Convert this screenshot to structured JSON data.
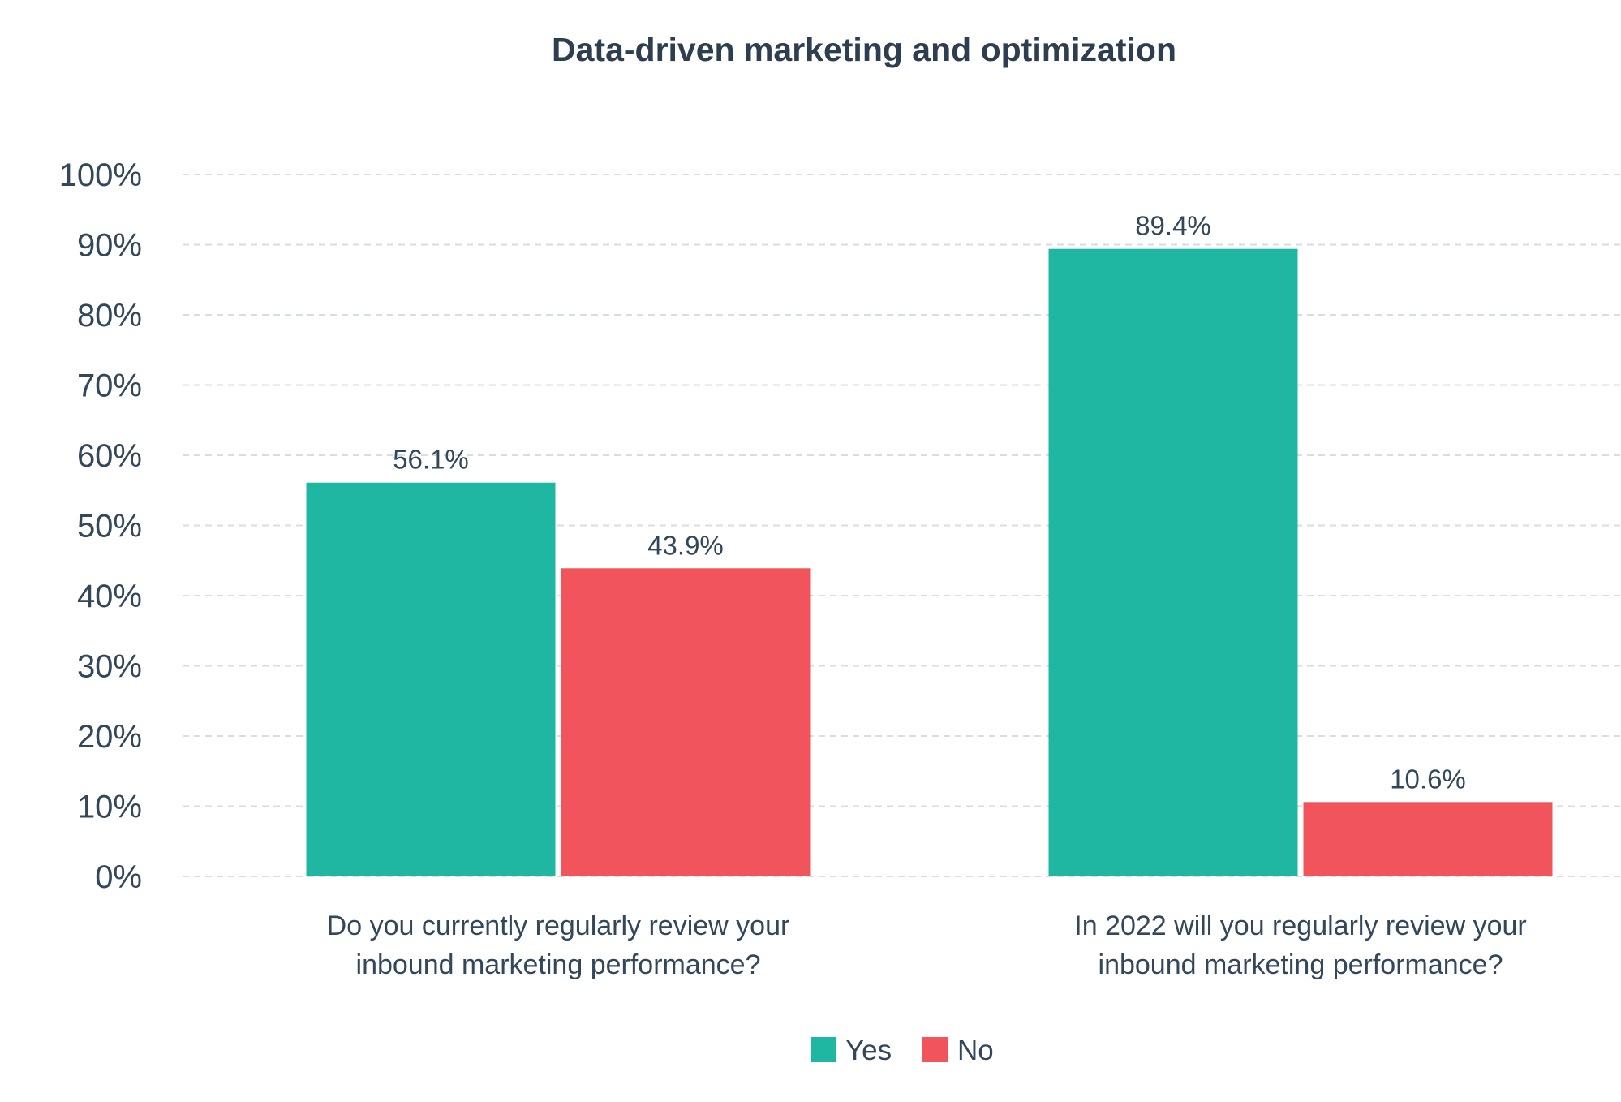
{
  "chart_data": {
    "type": "bar",
    "title": "Data-driven marketing and optimization",
    "xlabel": "",
    "ylabel": "",
    "ylim": [
      0,
      100
    ],
    "yticks": [
      0,
      10,
      20,
      30,
      40,
      50,
      60,
      70,
      80,
      90,
      100
    ],
    "ytick_suffix": "%",
    "grid": true,
    "legend_position": "bottom-center",
    "categories": [
      [
        "Do you currently regularly review your",
        "inbound marketing performance?"
      ],
      [
        "In 2022 will you regularly review your",
        "inbound marketing performance?"
      ]
    ],
    "series": [
      {
        "name": "Yes",
        "color": "#1fb7a2",
        "values": [
          56.1,
          89.4
        ],
        "labels": [
          "56.1%",
          "89.4%"
        ]
      },
      {
        "name": "No",
        "color": "#f2545b",
        "values": [
          43.9,
          10.6
        ],
        "labels": [
          "43.9%",
          "10.6%"
        ]
      }
    ]
  }
}
